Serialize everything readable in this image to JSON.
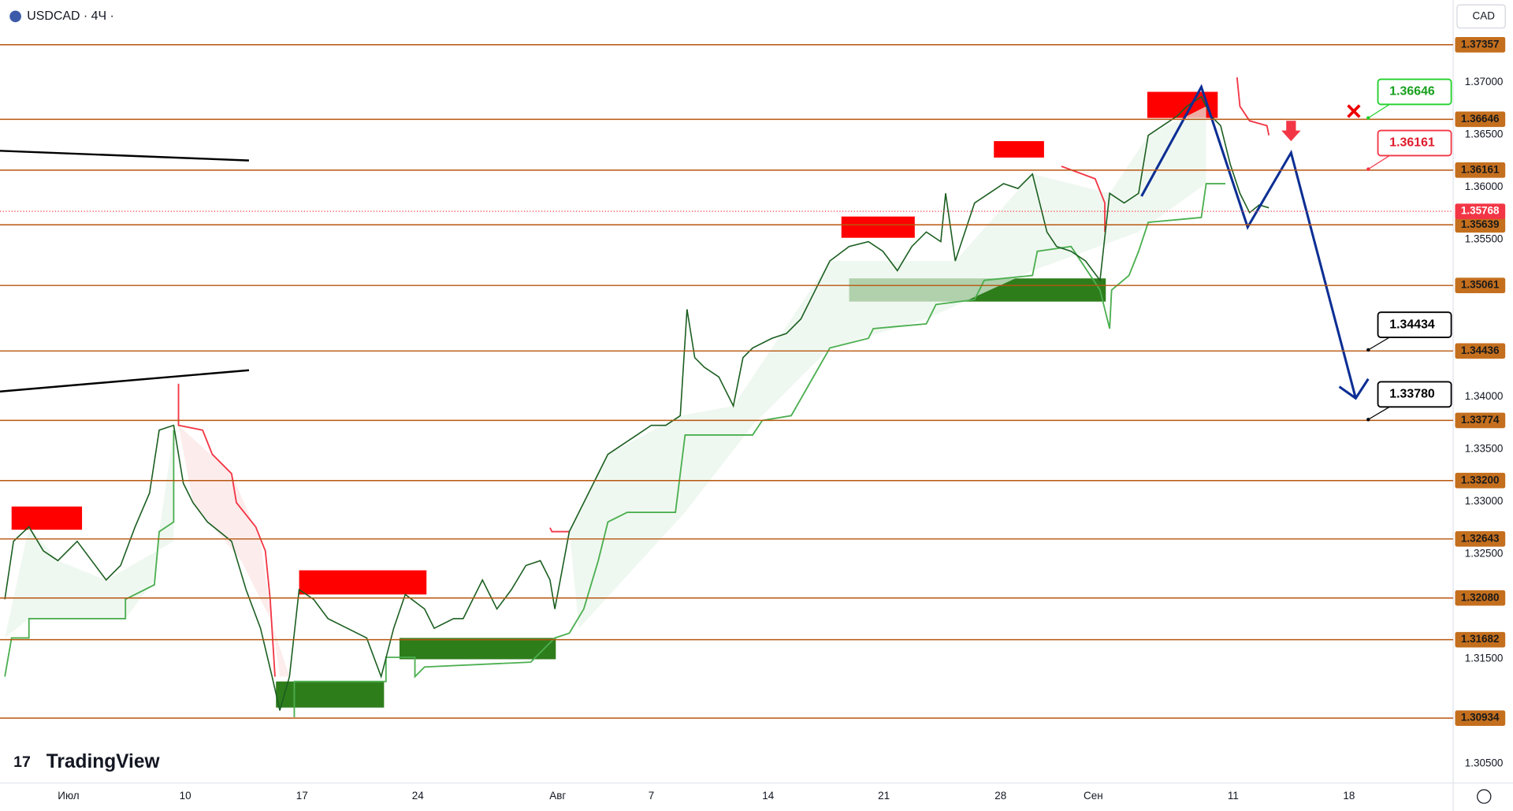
{
  "header": {
    "symbol": "USDCAD · 4Ч ·",
    "currency": "CAD"
  },
  "logo": "TradingView",
  "price_axis": {
    "labels": [
      "1.37000",
      "1.36500",
      "1.36000",
      "1.35500",
      "1.34000",
      "1.33500",
      "1.33000",
      "1.32500",
      "1.31500",
      "1.30500"
    ]
  },
  "levels": [
    "1.37357",
    "1.36646",
    "1.36161",
    "1.35639",
    "1.35061",
    "1.34436",
    "1.33774",
    "1.33200",
    "1.32643",
    "1.32080",
    "1.31682",
    "1.30934"
  ],
  "current_price": "1.35768",
  "callouts": [
    {
      "label": "1.36646",
      "style": "green"
    },
    {
      "label": "1.36161",
      "style": "red"
    },
    {
      "label": "1.34434",
      "style": "black"
    },
    {
      "label": "1.33780",
      "style": "black"
    }
  ],
  "time_axis": {
    "labels": [
      "Июл",
      "10",
      "17",
      "24",
      "Авг",
      "7",
      "14",
      "21",
      "28",
      "Сен",
      "11",
      "18"
    ]
  }
}
